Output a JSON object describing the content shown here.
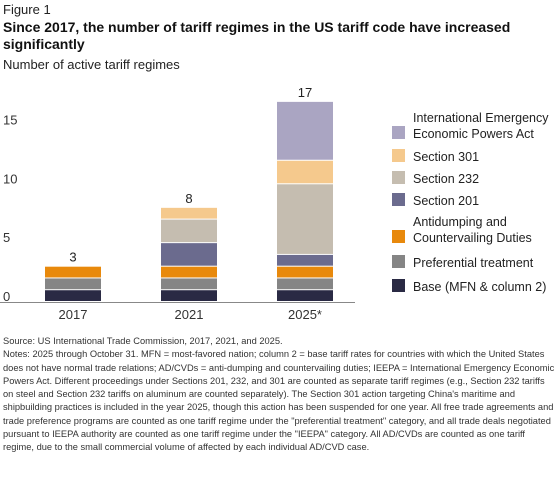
{
  "figure_label": "Figure 1",
  "title": "Since 2017, the number of tariff regimes in the US tariff code have increased significantly",
  "subtitle": "Number of active tariff regimes",
  "chart_data": {
    "type": "bar",
    "stacked": true,
    "categories": [
      "2017",
      "2021",
      "2025*"
    ],
    "ylim": [
      0,
      17.5
    ],
    "yticks": [
      0,
      5,
      10,
      15
    ],
    "grid": false,
    "legend_position": "right",
    "totals": [
      3,
      8,
      17
    ],
    "series": [
      {
        "name": "Base (MFN & column 2)",
        "color": "#2a2a44",
        "values": [
          1,
          1,
          1
        ]
      },
      {
        "name": "Preferential treatment",
        "color": "#858585",
        "values": [
          1,
          1,
          1
        ]
      },
      {
        "name": "Antidumping and Countervailing Duties",
        "color": "#e8890c",
        "values": [
          1,
          1,
          1
        ]
      },
      {
        "name": "Section 201",
        "color": "#6b6b8e",
        "values": [
          0,
          2,
          1
        ]
      },
      {
        "name": "Section 232",
        "color": "#c5bdb0",
        "values": [
          0,
          2,
          6
        ]
      },
      {
        "name": "Section 301",
        "color": "#f5c98d",
        "values": [
          0,
          1,
          2
        ]
      },
      {
        "name": "International Emergency Economic Powers Act",
        "color": "#aaa5c2",
        "values": [
          0,
          0,
          5
        ]
      }
    ],
    "legend_order": [
      6,
      5,
      4,
      3,
      2,
      1,
      0
    ],
    "legend_lines": [
      [
        "International Emergency",
        "Economic Powers Act"
      ],
      [
        "Section 301"
      ],
      [
        "Section 232"
      ],
      [
        "Section 201"
      ],
      [
        "Antidumping and",
        "Countervailing Duties"
      ],
      [
        "Preferential treatment"
      ],
      [
        "Base (MFN & column 2)"
      ]
    ]
  },
  "source": "Source: US International Trade Commission, 2017, 2021, and 2025.",
  "notes": "Notes: 2025 through October 31. MFN = most-favored nation; column 2 = base tariff rates for countries with which the United States does not have normal trade relations; AD/CVDs = anti-dumping and countervailing duties; IEEPA = International Emergency Economic Powers Act. Different proceedings under Sections 201, 232, and 301 are counted as separate tariff regimes (e.g., Section 232 tariffs on steel and Section 232 tariffs on aluminum are counted separately). The Section 301 action targeting China's maritime and shipbuilding practices is included in the year 2025, though this action has been suspended for one year. All free trade agreements and trade preference programs are counted as one tariff regime under the \"preferential treatment\" category, and all trade deals negotiated pursuant to IEEPA authority are counted as one tariff regime under the \"IEEPA\" category. All AD/CVDs are counted as one tariff regime, due to the small commercial volume of affected by each individual AD/CVD case."
}
